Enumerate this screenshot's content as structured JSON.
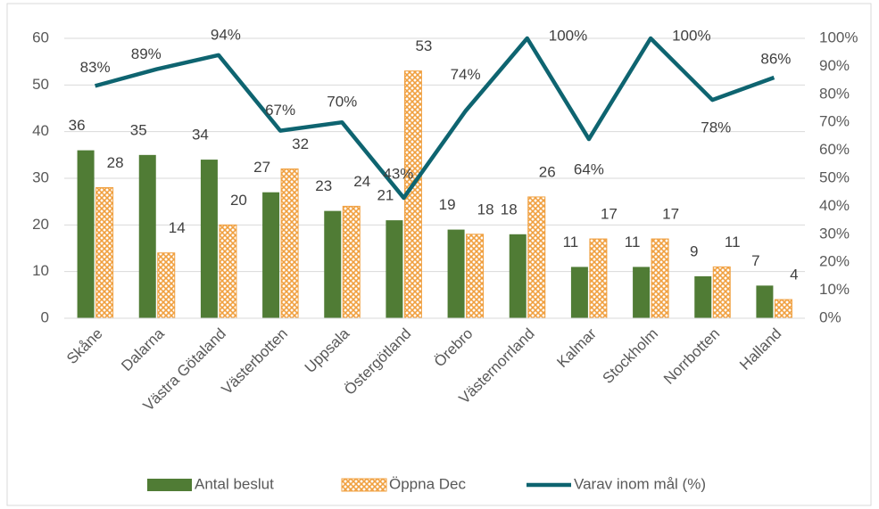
{
  "chart_data": {
    "type": "bar",
    "categories": [
      "Skåne",
      "Dalarna",
      "Västra Götaland",
      "Västerbotten",
      "Uppsala",
      "Östergötland",
      "Örebro",
      "Västernorrland",
      "Kalmar",
      "Stockholm",
      "Norrbotten",
      "Halland"
    ],
    "series": [
      {
        "name": "Antal beslut",
        "color": "#507c35",
        "type": "bar",
        "values": [
          36,
          35,
          34,
          27,
          23,
          21,
          19,
          18,
          11,
          11,
          9,
          7
        ]
      },
      {
        "name": "Öppna Dec",
        "color": "#f0a040",
        "type": "bar",
        "pattern": "crosshatch",
        "values": [
          28,
          14,
          20,
          32,
          24,
          53,
          18,
          26,
          17,
          17,
          11,
          4
        ]
      },
      {
        "name": "Varav inom mål (%)",
        "color": "#0e6470",
        "type": "line",
        "axis": "y2",
        "values": [
          83,
          89,
          94,
          67,
          70,
          43,
          74,
          100,
          64,
          100,
          78,
          86
        ],
        "value_labels": [
          "83%",
          "89%",
          "94%",
          "67%",
          "70%",
          "43%",
          "74%",
          "100%",
          "64%",
          "100%",
          "78%",
          "86%"
        ]
      }
    ],
    "ylim": [
      0,
      60
    ],
    "yticks": [
      0,
      10,
      20,
      30,
      40,
      50,
      60
    ],
    "y2lim": [
      0,
      100
    ],
    "y2ticks": [
      {
        "value": 0,
        "label": "0%"
      },
      {
        "value": 10,
        "label": "10%"
      },
      {
        "value": 20,
        "label": "20%"
      },
      {
        "value": 30,
        "label": "30%"
      },
      {
        "value": 40,
        "label": "40%"
      },
      {
        "value": 50,
        "label": "50%"
      },
      {
        "value": 60,
        "label": "60%"
      },
      {
        "value": 70,
        "label": "70%"
      },
      {
        "value": 80,
        "label": "80%"
      },
      {
        "value": 90,
        "label": "90%"
      },
      {
        "value": 100,
        "label": "100%"
      }
    ],
    "grid": true,
    "legend": "bottom"
  }
}
